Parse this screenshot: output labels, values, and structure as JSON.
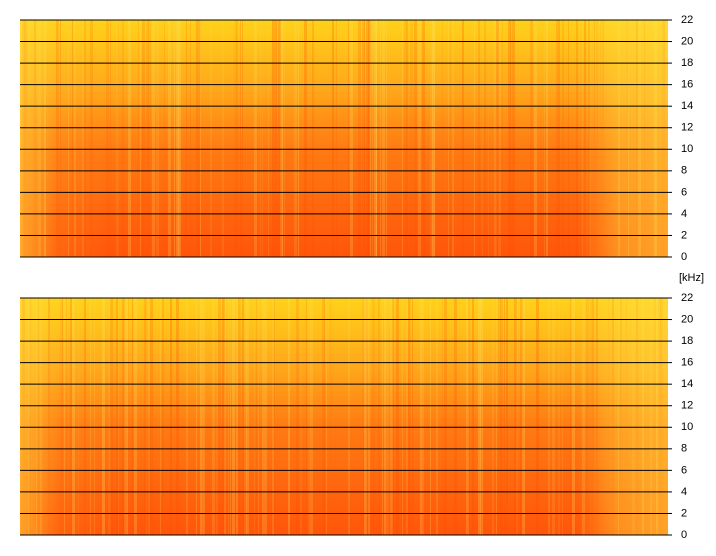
{
  "chart_data": [
    {
      "type": "spectrogram",
      "ylim": [
        0,
        22
      ],
      "yticks": [
        0,
        2,
        4,
        6,
        8,
        10,
        12,
        14,
        16,
        18,
        20,
        22
      ],
      "ylabel": "[kHz]"
    },
    {
      "type": "spectrogram",
      "ylim": [
        0,
        22
      ],
      "yticks": [
        0,
        2,
        4,
        6,
        8,
        10,
        12,
        14,
        16,
        18,
        20,
        22
      ]
    }
  ]
}
